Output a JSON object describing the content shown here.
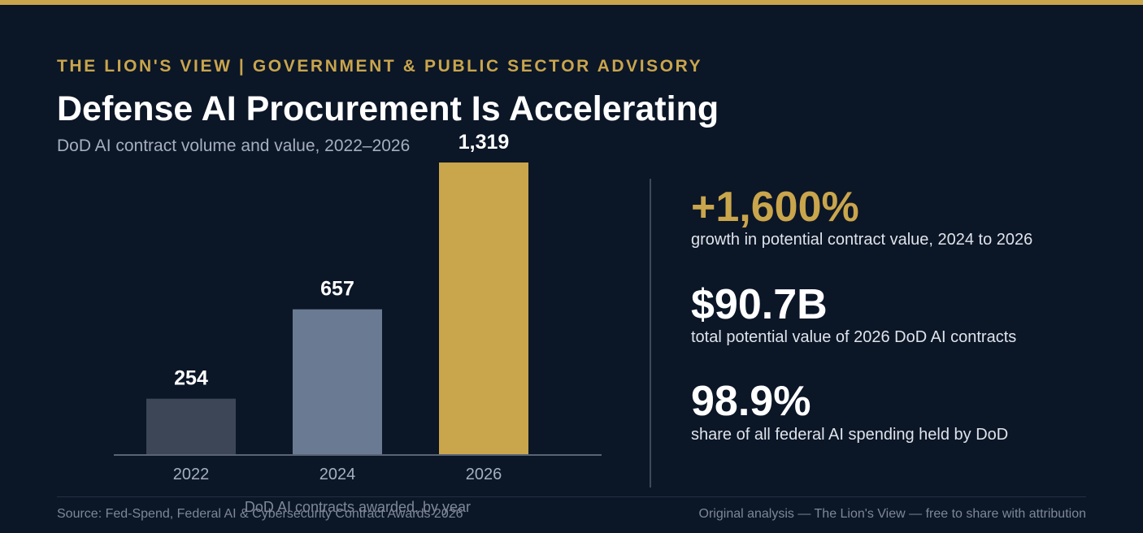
{
  "header": {
    "kicker": "THE LION'S VIEW | GOVERNMENT & PUBLIC SECTOR ADVISORY",
    "title": "Defense AI Procurement Is Accelerating",
    "subtitle": "DoD AI contract volume and value, 2022–2026"
  },
  "colors": {
    "background": "#0b1627",
    "accent": "#c9a54c",
    "bar_2022": "#3d4656",
    "bar_2024": "#6a7a92",
    "bar_2026": "#c9a54c",
    "axis": "#5a6374"
  },
  "chart_data": {
    "type": "bar",
    "categories": [
      "2022",
      "2024",
      "2026"
    ],
    "values": [
      254,
      657,
      1319
    ],
    "value_labels": [
      "254",
      "657",
      "1,319"
    ],
    "xlabel": "DoD AI contracts awarded, by year",
    "ylabel": "",
    "ylim": [
      0,
      1319
    ],
    "grid": false
  },
  "stats": [
    {
      "value": "+1,600%",
      "label": "growth in potential contract value, 2024 to 2026"
    },
    {
      "value": "$90.7B",
      "label": "total potential value of 2026 DoD AI contracts"
    },
    {
      "value": "98.9%",
      "label": "share of all federal AI spending held by DoD"
    }
  ],
  "footer": {
    "source": "Source: Fed-Spend, Federal AI & Cybersecurity Contract Awards 2026",
    "credit": "Original analysis — The Lion's View — free to share with attribution"
  }
}
